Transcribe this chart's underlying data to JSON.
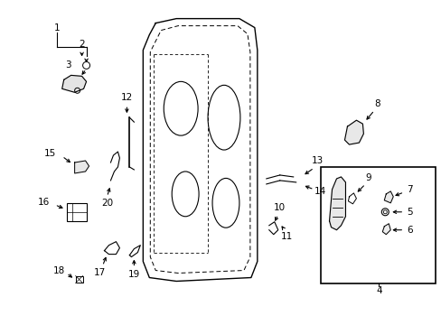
{
  "bg_color": "#ffffff",
  "fig_width": 4.89,
  "fig_height": 3.6,
  "dpi": 100,
  "font_size": 7.5,
  "line_color": "#000000"
}
